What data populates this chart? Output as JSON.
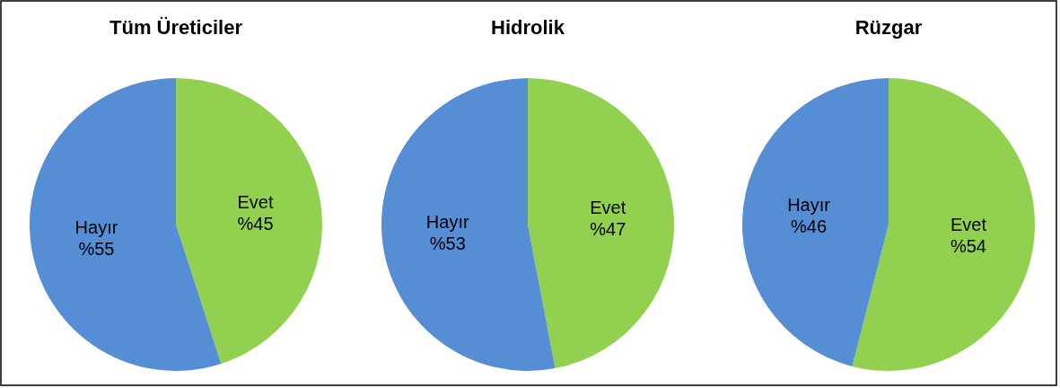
{
  "chart_data": [
    {
      "type": "pie",
      "title": "Tüm Üreticiler",
      "categories": [
        "Evet",
        "Hayır"
      ],
      "values": [
        45,
        55
      ],
      "colors": [
        "#92d050",
        "#558ed5"
      ],
      "value_labels": [
        "%45",
        "%55"
      ]
    },
    {
      "type": "pie",
      "title": "Hidrolik",
      "categories": [
        "Evet",
        "Hayır"
      ],
      "values": [
        47,
        53
      ],
      "colors": [
        "#92d050",
        "#558ed5"
      ],
      "value_labels": [
        "%47",
        "%53"
      ]
    },
    {
      "type": "pie",
      "title": "Rüzgar",
      "categories": [
        "Evet",
        "Hayır"
      ],
      "values": [
        54,
        46
      ],
      "colors": [
        "#92d050",
        "#558ed5"
      ],
      "value_labels": [
        "%54",
        "%46"
      ]
    }
  ]
}
